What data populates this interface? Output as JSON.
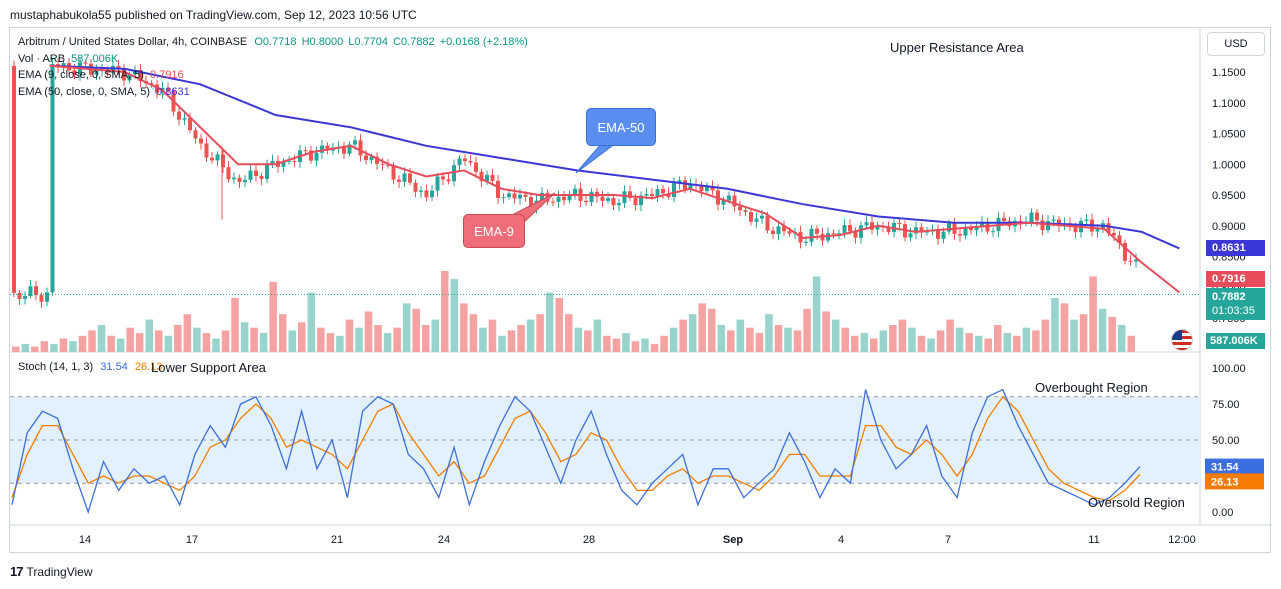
{
  "publish_line": "mustaphabukola55 published on TradingView.com, Sep 12, 2023 10:56 UTC",
  "footer": {
    "logo_glyph": "17",
    "brand": "TradingView"
  },
  "header": {
    "symbol": "Arbitrum / United States Dollar, 4h, COINBASE",
    "open": "O0.7718",
    "high": "H0.8000",
    "low": "L0.7704",
    "close": "C0.7882",
    "change": "+0.0168 (+2.18%)",
    "vol_label": "Vol · ARB",
    "vol_value": "587.006K",
    "ema9_label": "EMA (9, close, 0, SMA, 5)",
    "ema9_value": "0.7916",
    "ema50_label": "EMA (50, close, 0, SMA, 5)",
    "ema50_value": "0.8631",
    "stoch_label": "Stoch (14, 1, 3)",
    "stoch_k": "31.54",
    "stoch_d": "26.13"
  },
  "currency": "USD",
  "annotations": {
    "upper_resistance": "Upper Resistance Area",
    "lower_support": "Lower Support Area",
    "overbought": "Overbought Region",
    "oversold": "Oversold Region",
    "ema50_callout": "EMA-50",
    "ema9_callout": "EMA-9"
  },
  "price_badges": {
    "ema50": "0.8631",
    "ema9": "0.7916",
    "price": "0.7882",
    "countdown": "01:03:35",
    "volume": "587.006K"
  },
  "colors": {
    "up": "#26a69a",
    "down": "#ef5350",
    "ema9": "#e84c5a",
    "ema50": "#3b36d6",
    "stoch_k": "#3b6fe0",
    "stoch_d": "#f57c00",
    "band": "#e3f0fd",
    "volume_up": "#98d4cc",
    "volume_down": "#f5a3a2"
  },
  "chart_data": [
    {
      "type": "candlestick",
      "title": "Arbitrum / United States Dollar, 4h, COINBASE",
      "x_ticks": [
        "14",
        "17",
        "21",
        "24",
        "28",
        "Sep",
        "4",
        "7",
        "11",
        "12:00"
      ],
      "y_ticks": [
        "1.1500",
        "1.1000",
        "1.0500",
        "1.0000",
        "0.9500",
        "0.9000",
        "0.8500",
        "0.8000",
        "0.7500"
      ],
      "ylim": [
        0.74,
        1.17
      ],
      "close_path": [
        {
          "x": "13 Aug",
          "y": 1.16
        },
        {
          "x": "15 Aug",
          "y": 1.15
        },
        {
          "x": "16 Aug",
          "y": 1.12
        },
        {
          "x": "17 Aug",
          "y": 1.03
        },
        {
          "x": "18 Aug",
          "y": 0.97
        },
        {
          "x": "19 Aug",
          "y": 1.0
        },
        {
          "x": "20 Aug",
          "y": 1.02
        },
        {
          "x": "21 Aug",
          "y": 1.03
        },
        {
          "x": "22 Aug",
          "y": 0.99
        },
        {
          "x": "23 Aug",
          "y": 0.95
        },
        {
          "x": "24 Aug",
          "y": 1.01
        },
        {
          "x": "25 Aug",
          "y": 0.95
        },
        {
          "x": "26 Aug",
          "y": 0.94
        },
        {
          "x": "27 Aug",
          "y": 0.95
        },
        {
          "x": "28 Aug",
          "y": 0.94
        },
        {
          "x": "29 Aug",
          "y": 0.95
        },
        {
          "x": "30 Aug",
          "y": 0.97
        },
        {
          "x": "31 Aug",
          "y": 0.94
        },
        {
          "x": "1 Sep",
          "y": 0.9
        },
        {
          "x": "2 Sep",
          "y": 0.88
        },
        {
          "x": "3 Sep",
          "y": 0.89
        },
        {
          "x": "4 Sep",
          "y": 0.9
        },
        {
          "x": "5 Sep",
          "y": 0.89
        },
        {
          "x": "6 Sep",
          "y": 0.89
        },
        {
          "x": "7 Sep",
          "y": 0.9
        },
        {
          "x": "8 Sep",
          "y": 0.91
        },
        {
          "x": "9 Sep",
          "y": 0.9
        },
        {
          "x": "10 Sep",
          "y": 0.9
        },
        {
          "x": "11 Sep",
          "y": 0.82
        },
        {
          "x": "12 Sep",
          "y": 0.7882
        }
      ],
      "ema9": [
        {
          "x": "13 Aug",
          "y": 1.16
        },
        {
          "x": "15 Aug",
          "y": 1.15
        },
        {
          "x": "16 Aug",
          "y": 1.12
        },
        {
          "x": "17 Aug",
          "y": 1.06
        },
        {
          "x": "18 Aug",
          "y": 1.0
        },
        {
          "x": "19 Aug",
          "y": 1.0
        },
        {
          "x": "20 Aug",
          "y": 1.02
        },
        {
          "x": "21 Aug",
          "y": 1.03
        },
        {
          "x": "22 Aug",
          "y": 1.0
        },
        {
          "x": "23 Aug",
          "y": 0.98
        },
        {
          "x": "24 Aug",
          "y": 0.99
        },
        {
          "x": "25 Aug",
          "y": 0.96
        },
        {
          "x": "26 Aug",
          "y": 0.95
        },
        {
          "x": "27 Aug",
          "y": 0.95
        },
        {
          "x": "28 Aug",
          "y": 0.95
        },
        {
          "x": "29 Aug",
          "y": 0.945
        },
        {
          "x": "30 Aug",
          "y": 0.96
        },
        {
          "x": "31 Aug",
          "y": 0.94
        },
        {
          "x": "1 Sep",
          "y": 0.92
        },
        {
          "x": "2 Sep",
          "y": 0.88
        },
        {
          "x": "3 Sep",
          "y": 0.885
        },
        {
          "x": "4 Sep",
          "y": 0.9
        },
        {
          "x": "5 Sep",
          "y": 0.89
        },
        {
          "x": "6 Sep",
          "y": 0.895
        },
        {
          "x": "7 Sep",
          "y": 0.9
        },
        {
          "x": "8 Sep",
          "y": 0.905
        },
        {
          "x": "9 Sep",
          "y": 0.9
        },
        {
          "x": "10 Sep",
          "y": 0.895
        },
        {
          "x": "11 Sep",
          "y": 0.84
        },
        {
          "x": "12 Sep",
          "y": 0.7916
        }
      ],
      "ema50": [
        {
          "x": "13 Aug",
          "y": 1.16
        },
        {
          "x": "15 Aug",
          "y": 1.155
        },
        {
          "x": "17 Aug",
          "y": 1.13
        },
        {
          "x": "19 Aug",
          "y": 1.08
        },
        {
          "x": "21 Aug",
          "y": 1.06
        },
        {
          "x": "23 Aug",
          "y": 1.03
        },
        {
          "x": "25 Aug",
          "y": 1.01
        },
        {
          "x": "27 Aug",
          "y": 0.99
        },
        {
          "x": "29 Aug",
          "y": 0.975
        },
        {
          "x": "31 Aug",
          "y": 0.96
        },
        {
          "x": "2 Sep",
          "y": 0.935
        },
        {
          "x": "4 Sep",
          "y": 0.915
        },
        {
          "x": "6 Sep",
          "y": 0.905
        },
        {
          "x": "8 Sep",
          "y": 0.905
        },
        {
          "x": "10 Sep",
          "y": 0.9
        },
        {
          "x": "11 Sep",
          "y": 0.89
        },
        {
          "x": "12 Sep",
          "y": 0.8631
        }
      ]
    },
    {
      "type": "line",
      "title": "Stoch (14, 1, 3)",
      "y_ticks": [
        "100.00",
        "75.00",
        "50.00",
        "25.00",
        "0.00"
      ],
      "ylim": [
        0,
        100
      ],
      "levels": [
        80,
        50,
        20
      ],
      "series": [
        {
          "name": "%K",
          "values": [
            5,
            55,
            70,
            65,
            30,
            0,
            35,
            15,
            30,
            20,
            25,
            5,
            40,
            60,
            45,
            75,
            80,
            60,
            30,
            70,
            30,
            50,
            10,
            70,
            80,
            75,
            40,
            30,
            10,
            45,
            5,
            35,
            60,
            80,
            70,
            45,
            20,
            50,
            70,
            40,
            15,
            5,
            20,
            30,
            40,
            5,
            30,
            30,
            10,
            20,
            30,
            55,
            35,
            10,
            30,
            20,
            85,
            50,
            30,
            40,
            60,
            25,
            10,
            55,
            80,
            85,
            60,
            40,
            20,
            15,
            10,
            5,
            10,
            20,
            31.54
          ]
        },
        {
          "name": "%D",
          "values": [
            10,
            40,
            60,
            60,
            40,
            20,
            25,
            20,
            25,
            25,
            20,
            15,
            25,
            45,
            50,
            65,
            75,
            65,
            45,
            50,
            45,
            40,
            30,
            50,
            70,
            75,
            55,
            40,
            25,
            35,
            20,
            25,
            45,
            65,
            70,
            55,
            35,
            40,
            55,
            50,
            30,
            15,
            15,
            25,
            30,
            20,
            25,
            25,
            20,
            15,
            25,
            40,
            40,
            25,
            25,
            25,
            60,
            60,
            45,
            40,
            50,
            40,
            25,
            40,
            65,
            80,
            70,
            50,
            30,
            20,
            15,
            10,
            8,
            15,
            26.13
          ]
        }
      ]
    },
    {
      "type": "bar",
      "title": "Vol · ARB",
      "values": [
        2,
        3,
        2,
        4,
        3,
        5,
        4,
        6,
        8,
        10,
        6,
        5,
        9,
        7,
        12,
        8,
        6,
        10,
        14,
        9,
        7,
        5,
        8,
        20,
        11,
        9,
        7,
        26,
        14,
        8,
        11,
        22,
        9,
        7,
        6,
        12,
        9,
        15,
        10,
        7,
        9,
        18,
        16,
        10,
        12,
        30,
        27,
        18,
        14,
        9,
        12,
        6,
        8,
        10,
        12,
        14,
        22,
        20,
        14,
        9,
        8,
        12,
        6,
        5,
        7,
        4,
        5,
        3,
        6,
        9,
        12,
        14,
        18,
        16,
        10,
        8,
        12,
        9,
        7,
        14,
        10,
        9,
        8,
        16,
        28,
        15,
        12,
        9,
        6,
        7,
        5,
        8,
        10,
        12,
        9,
        6,
        5,
        8,
        12,
        9,
        7,
        6,
        5,
        10,
        7,
        6,
        9,
        8,
        12,
        20,
        18,
        12,
        14,
        28,
        16,
        13,
        10,
        6
      ],
      "colors": [
        "down",
        "up"
      ]
    }
  ]
}
